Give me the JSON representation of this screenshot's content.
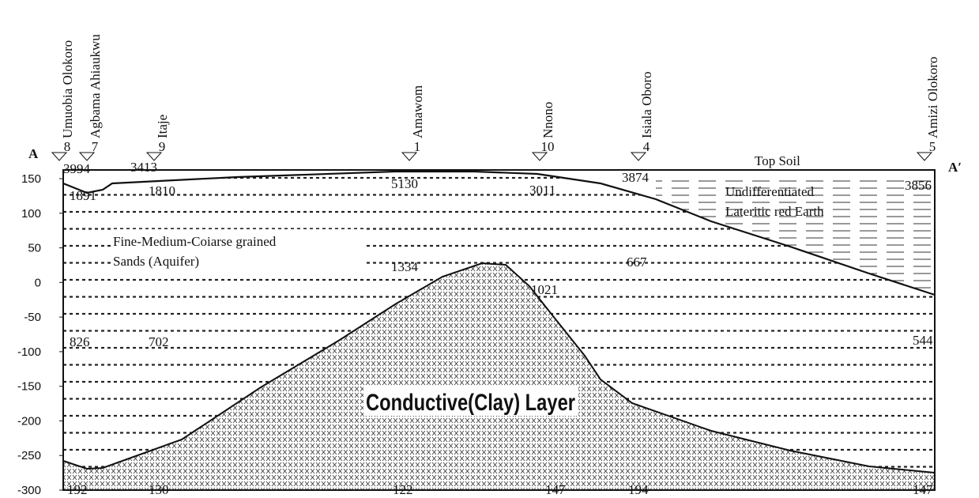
{
  "section": {
    "start_label": "A",
    "end_label": "A′",
    "ylim": [
      -300,
      150
    ],
    "yticks": [
      150,
      100,
      50,
      0,
      -50,
      -100,
      -150,
      -200,
      -250,
      -300
    ],
    "stations": [
      {
        "name": "Umuobia Olokoro",
        "number": "8"
      },
      {
        "name": "Agbama Ahiaukwu",
        "number": "7"
      },
      {
        "name": "Itaje",
        "number": "9"
      },
      {
        "name": "Amawom",
        "number": "1"
      },
      {
        "name": "Nnono",
        "number": "10"
      },
      {
        "name": "Isiala Oboro",
        "number": "4"
      },
      {
        "name": "Amizi Olokoro",
        "number": "5"
      }
    ],
    "resistivities": [
      3994,
      1891,
      3413,
      1810,
      5130,
      3011,
      3874,
      3856,
      1334,
      667,
      1021,
      826,
      702,
      544,
      192,
      130,
      122,
      147,
      194,
      147
    ],
    "layers": {
      "top_soil": "Top Soil",
      "laterite_line1": "Undifferentiated",
      "laterite_line2": "Lateritic red Earth",
      "aquifer_line1": "Fine-Medium-Coiarse grained",
      "aquifer_line2": "Sands (Aquifer)",
      "clay": "Conductive(Clay) Layer"
    }
  }
}
